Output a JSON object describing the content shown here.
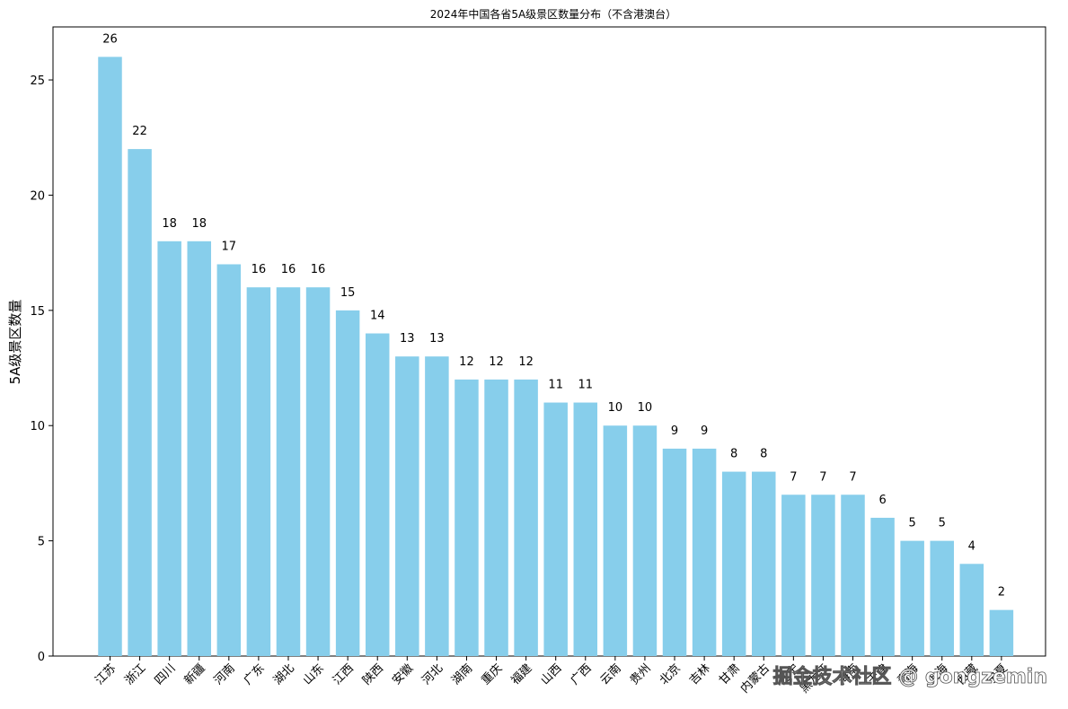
{
  "chart_data": {
    "type": "bar",
    "title": "2024年中国各省5A级景区数量分布（不含港澳台）",
    "xlabel": "",
    "ylabel": "5A级景区数量",
    "categories": [
      "江苏",
      "浙江",
      "四川",
      "新疆",
      "河南",
      "广东",
      "湖北",
      "山东",
      "江西",
      "陕西",
      "安徽",
      "河北",
      "湖南",
      "重庆",
      "福建",
      "山西",
      "广西",
      "云南",
      "贵州",
      "北京",
      "吉林",
      "甘肃",
      "内蒙古",
      "辽宁",
      "黑龙江",
      "海南",
      "天津",
      "青海",
      "上海",
      "西藏",
      "宁夏"
    ],
    "values": [
      26,
      22,
      18,
      18,
      17,
      16,
      16,
      16,
      15,
      14,
      13,
      13,
      12,
      12,
      12,
      11,
      11,
      10,
      10,
      9,
      9,
      8,
      8,
      7,
      7,
      7,
      6,
      5,
      5,
      4,
      2
    ],
    "ylim": [
      0,
      27.3
    ],
    "yticks": [
      0,
      5,
      10,
      15,
      20,
      25
    ],
    "bar_color": "#87ceeb",
    "grid": false,
    "legend": "none"
  },
  "watermark": "掘金技术社区 @ gongzemin"
}
